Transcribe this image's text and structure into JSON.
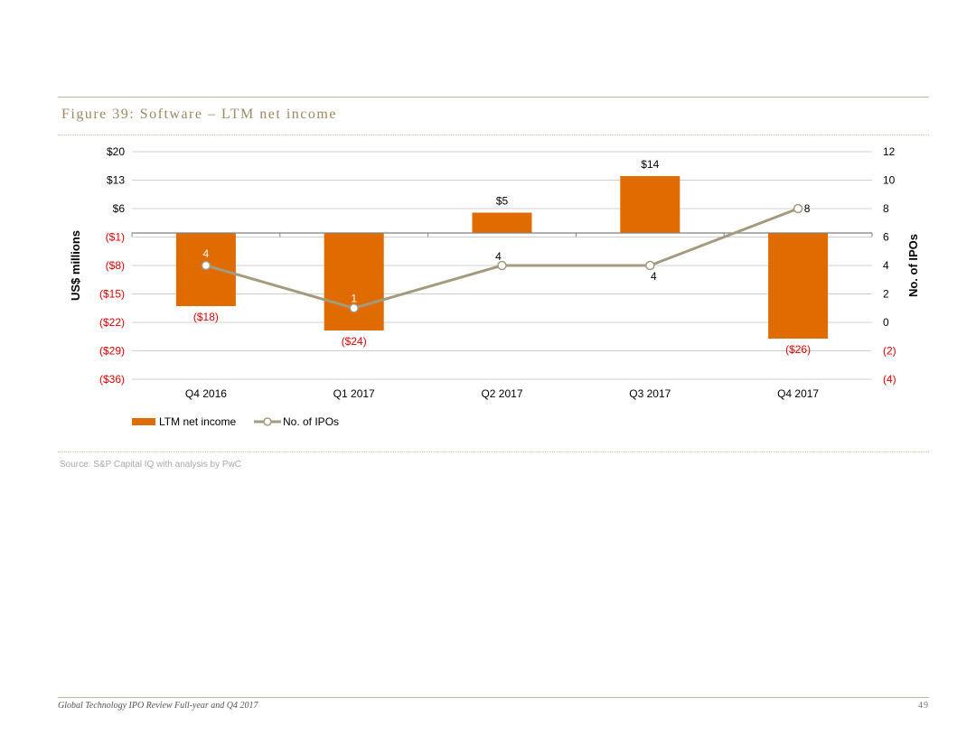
{
  "figure_title": "Figure 39: Software – LTM net income",
  "source": "Source: S&P Capital IQ with analysis by PwC",
  "footer": {
    "text": "Global Technology IPO Review Full-year and Q4 2017",
    "page": "49"
  },
  "colors": {
    "bar": "#e06b00",
    "line": "#a49a7d",
    "negative_text": "#e00000",
    "rule": "#bdb89a"
  },
  "chart_data": {
    "type": "bar+line",
    "categories": [
      "Q4 2016",
      "Q1 2017",
      "Q2 2017",
      "Q3 2017",
      "Q4 2017"
    ],
    "series": [
      {
        "name": "LTM net income",
        "type": "bar",
        "axis": "left",
        "values": [
          -18,
          -24,
          5,
          14,
          -26
        ],
        "labels": [
          "($18)",
          "($24)",
          "$5",
          "$14",
          "($26)"
        ]
      },
      {
        "name": "No. of IPOs",
        "type": "line",
        "axis": "right",
        "values": [
          4,
          1,
          4,
          4,
          8
        ],
        "labels": [
          "4",
          "1",
          "4",
          "4",
          "8"
        ]
      }
    ],
    "left_axis": {
      "label": "US$ millions",
      "ticks": [
        20,
        13,
        6,
        -1,
        -8,
        -15,
        -22,
        -29,
        -36
      ],
      "tick_labels": [
        "$20",
        "$13",
        "$6",
        "($1)",
        "($8)",
        "($15)",
        "($22)",
        "($29)",
        "($36)"
      ],
      "range": [
        -36,
        20
      ]
    },
    "right_axis": {
      "label": "No. of IPOs",
      "ticks": [
        12,
        10,
        8,
        6,
        4,
        2,
        0,
        -2,
        -4
      ],
      "tick_labels": [
        "12",
        "10",
        "8",
        "6",
        "4",
        "2",
        "0",
        "(2)",
        "(4)"
      ],
      "range": [
        -4,
        12
      ]
    },
    "legend": [
      "LTM net income",
      "No. of IPOs"
    ],
    "legend_position": "bottom-left"
  }
}
